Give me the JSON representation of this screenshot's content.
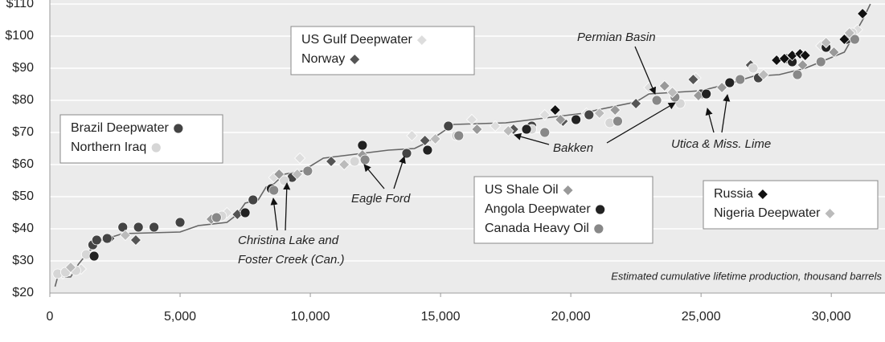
{
  "chart_data": {
    "type": "scatter",
    "x_label": "Estimated cumulative lifetime production, thousand barrels",
    "xlim": [
      0,
      32000
    ],
    "ylim": [
      20,
      110
    ],
    "xticks": [
      0,
      {
        "value": 5000,
        "label": "5,000"
      },
      {
        "value": 10000,
        "label": "10,000"
      },
      {
        "value": 15000,
        "label": "15,000"
      },
      {
        "value": 20000,
        "label": "20,000"
      },
      {
        "value": 25000,
        "label": "25,000"
      },
      {
        "value": 30000,
        "label": "30,000"
      }
    ],
    "yticks": [
      {
        "value": 20,
        "label": "$20"
      },
      {
        "value": 30,
        "label": "$30"
      },
      {
        "value": 40,
        "label": "$40"
      },
      {
        "value": 50,
        "label": "$50"
      },
      {
        "value": 60,
        "label": "$60"
      },
      {
        "value": 70,
        "label": "$70"
      },
      {
        "value": 80,
        "label": "$80"
      },
      {
        "value": 90,
        "label": "$90"
      },
      {
        "value": 100,
        "label": "$100"
      },
      {
        "value": 110,
        "label": "$110"
      }
    ],
    "grid": true,
    "series": [
      {
        "name": "US Gulf Deepwater",
        "color": "#dddddd",
        "marker": "diamond",
        "x": [
          500,
          1200,
          6800,
          8600,
          9600,
          13900,
          16200,
          17100,
          19000,
          20600,
          23000,
          24800,
          29600,
          31000
        ],
        "values": [
          26,
          27.5,
          45,
          56,
          62,
          69,
          74,
          72,
          75.5,
          76,
          84,
          87,
          97,
          102
        ]
      },
      {
        "name": "Norway",
        "color": "#555555",
        "marker": "diamond",
        "x": [
          2300,
          3300,
          7200,
          10800,
          14400,
          17800,
          19700,
          22500,
          24700,
          26900
        ],
        "values": [
          37,
          36.5,
          44.5,
          61,
          67.5,
          71,
          73.5,
          79,
          86.5,
          91
        ]
      },
      {
        "name": "Brazil Deepwater",
        "color": "#444444",
        "marker": "circle",
        "x": [
          1650,
          1800,
          2200,
          2800,
          3400,
          4000,
          5000,
          7800,
          9300,
          13700,
          15300,
          18500,
          20700,
          25000,
          27200,
          28300,
          30600
        ],
        "values": [
          35,
          36.5,
          37,
          40.5,
          40.5,
          40.5,
          42,
          49,
          56,
          63.5,
          72,
          72,
          75.5,
          82,
          87,
          93,
          99
        ]
      },
      {
        "name": "Northern Iraq",
        "color": "#d6d6d6",
        "marker": "circle",
        "x": [
          300,
          600,
          1000,
          1400,
          6600,
          9000,
          11700,
          15600,
          18500,
          21500,
          24200,
          27000,
          30800
        ],
        "values": [
          26,
          26.5,
          27,
          32,
          44,
          55,
          61,
          69,
          71,
          73,
          79,
          90,
          101
        ]
      },
      {
        "name": "US Shale Oil",
        "color": "#999999",
        "marker": "diamond",
        "x": [
          6200,
          8800,
          12000,
          16400,
          19600,
          21700,
          23600,
          24900,
          25800,
          28900,
          30100
        ],
        "values": [
          43,
          57,
          63,
          71,
          74,
          77,
          84.5,
          81.5,
          84,
          91,
          95
        ]
      },
      {
        "name": "Angola Deepwater",
        "color": "#222222",
        "marker": "circle",
        "x": [
          1700,
          7500,
          8500,
          12000,
          14500,
          18300,
          20200,
          25200,
          26100,
          28500,
          29800
        ],
        "values": [
          31.5,
          45,
          52.5,
          66,
          64.5,
          71,
          74,
          82,
          85.5,
          92,
          96.5
        ]
      },
      {
        "name": "Canada Heavy Oil",
        "color": "#888888",
        "marker": "circle",
        "x": [
          6400,
          8600,
          9900,
          12100,
          15700,
          19000,
          21800,
          23300,
          24000,
          26500,
          28700,
          29600,
          30900
        ],
        "values": [
          43.5,
          52,
          58,
          61.5,
          69,
          70,
          73.5,
          80,
          81,
          86.5,
          88,
          92,
          99
        ]
      },
      {
        "name": "Russia",
        "color": "#111111",
        "marker": "diamond",
        "x": [
          19400,
          27900,
          28200,
          28500,
          28800,
          29000,
          30500,
          31200
        ],
        "values": [
          77,
          92.5,
          93,
          94,
          94.5,
          94,
          99,
          107
        ]
      },
      {
        "name": "Nigeria Deepwater",
        "color": "#bbbbbb",
        "marker": "diamond",
        "x": [
          800,
          2900,
          9500,
          11300,
          14800,
          17600,
          21100,
          23900,
          27400,
          29800,
          30700
        ],
        "values": [
          28,
          38,
          57,
          60,
          68,
          70.5,
          76,
          82.5,
          88,
          98,
          101
        ]
      }
    ],
    "curve": {
      "color": "#666666",
      "x": [
        200,
        300,
        800,
        1100,
        1500,
        2000,
        2800,
        5000,
        5700,
        6800,
        7200,
        7500,
        8000,
        8300,
        8600,
        9000,
        9700,
        10500,
        12000,
        13000,
        14000,
        14500,
        15500,
        17500,
        19000,
        20500,
        21000,
        22500,
        23000,
        24000,
        25000,
        26000,
        27000,
        28000,
        29000,
        30500,
        31200,
        31500
      ],
      "values": [
        22,
        25,
        25,
        29,
        33,
        36.5,
        38.5,
        39,
        41,
        42,
        44.5,
        48,
        49,
        53,
        54,
        57,
        58,
        62,
        63.5,
        64.5,
        65,
        67,
        72.5,
        73,
        74.5,
        76,
        77,
        79.5,
        82,
        82.5,
        83,
        85,
        87.5,
        88,
        90,
        95,
        105,
        110
      ]
    },
    "annotations": [
      "Permian Basin",
      "Bakken",
      "Utica & Miss. Lime",
      "Eagle Ford",
      "Christina Lake and",
      "Foster Creek (Can.)"
    ]
  }
}
